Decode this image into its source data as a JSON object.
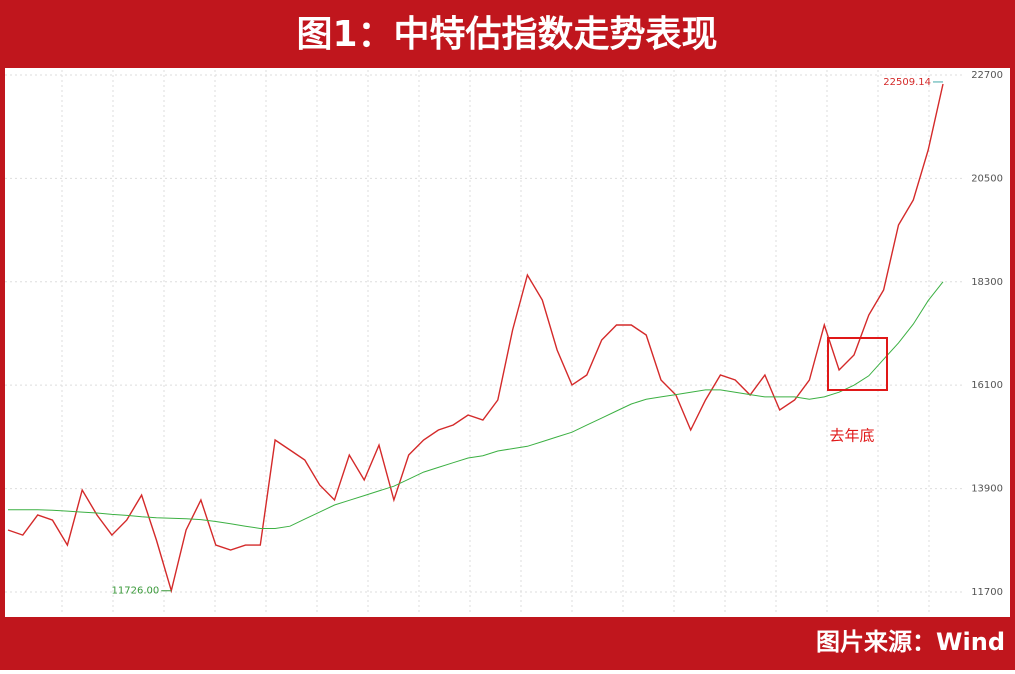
{
  "header": {
    "title": "图1：中特估指数走势表现"
  },
  "footer": {
    "source": "图片来源：Wind"
  },
  "chart_data": {
    "type": "line",
    "ylim": [
      11210,
      22806
    ],
    "yticks": [
      11700,
      13900,
      16100,
      18300,
      20500,
      22700
    ],
    "grid": true,
    "series": [
      {
        "color": "#d42a2a",
        "values": [
          13018,
          12911,
          13337,
          13230,
          12698,
          13869,
          13337,
          12911,
          13230,
          13762,
          12805,
          11726,
          13018,
          13656,
          12698,
          12592,
          12698,
          12698,
          14933,
          14720,
          14507,
          13975,
          13656,
          14614,
          14082,
          14826,
          13656,
          14614,
          14933,
          15146,
          15252,
          15465,
          15358,
          15784,
          17274,
          18444,
          17912,
          16848,
          16103,
          16316,
          17061,
          17380,
          17380,
          17167,
          16210,
          15890,
          15146,
          15784,
          16316,
          16210,
          15890,
          16316,
          15571,
          15784,
          16210,
          17380,
          16422,
          16742,
          17593,
          18125,
          19508,
          20040,
          21104,
          22509.14
        ]
      },
      {
        "color": "#3cb043",
        "values": [
          13450,
          13450,
          13450,
          13440,
          13420,
          13400,
          13380,
          13350,
          13330,
          13300,
          13280,
          13270,
          13260,
          13240,
          13200,
          13150,
          13100,
          13050,
          13050,
          13100,
          13250,
          13400,
          13550,
          13650,
          13750,
          13850,
          13950,
          14100,
          14250,
          14350,
          14450,
          14550,
          14600,
          14700,
          14750,
          14800,
          14900,
          15000,
          15100,
          15250,
          15400,
          15550,
          15700,
          15800,
          15850,
          15900,
          15950,
          16000,
          16000,
          15950,
          15900,
          15850,
          15850,
          15850,
          15800,
          15850,
          15950,
          16100,
          16300,
          16650,
          17000,
          17400,
          17900,
          18300
        ]
      }
    ],
    "annotations": [
      {
        "text": "22509.14"
      },
      {
        "text": "11726.00"
      },
      {
        "text": "去年底"
      }
    ]
  }
}
